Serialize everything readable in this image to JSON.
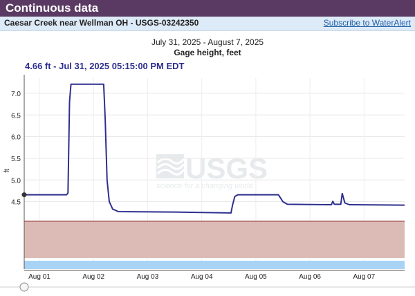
{
  "header": {
    "title": "Continuous data"
  },
  "site": {
    "name": "Caesar Creek near Wellman OH - USGS-03242350",
    "subscribe_label": "Subscribe to WaterAlert"
  },
  "colors": {
    "header_bg": "#5a3a63",
    "site_bg": "#ddeaf7",
    "line": "#2e2f8f",
    "flood_band": "#dcbab5",
    "flood_line": "#8b2a2a",
    "blue_band": "#a9d3f5"
  },
  "watermark": {
    "logo_text": "USGS",
    "tagline": "science for a changing world"
  },
  "chart_data": {
    "type": "line",
    "title": "July 31, 2025 - August 7, 2025",
    "subtitle": "Gage height, feet",
    "tooltip": "4.66 ft - Jul 31, 2025 05:15:00 PM EDT",
    "ylabel": "ft",
    "ylim": [
      3.6,
      7.35
    ],
    "y_ticks": [
      {
        "value": 4.5,
        "label": "4.5"
      },
      {
        "value": 5.0,
        "label": "5.0"
      },
      {
        "value": 5.5,
        "label": "5.5"
      },
      {
        "value": 6.0,
        "label": "6.0"
      },
      {
        "value": 6.5,
        "label": "6.5"
      },
      {
        "value": 7.0,
        "label": "7.0"
      }
    ],
    "x_start": "2025-07-31 17:15",
    "x_end": "2025-08-07 18:00",
    "x_ticks": [
      {
        "time": "2025-08-01 00:00",
        "label": "Aug 01"
      },
      {
        "time": "2025-08-02 00:00",
        "label": "Aug 02"
      },
      {
        "time": "2025-08-03 00:00",
        "label": "Aug 03"
      },
      {
        "time": "2025-08-04 00:00",
        "label": "Aug 04"
      },
      {
        "time": "2025-08-05 00:00",
        "label": "Aug 05"
      },
      {
        "time": "2025-08-06 00:00",
        "label": "Aug 06"
      },
      {
        "time": "2025-08-07 00:00",
        "label": "Aug 07"
      }
    ],
    "flood_band_top": 4.05,
    "series": [
      {
        "points": [
          [
            "2025-07-31 17:15",
            4.66
          ],
          [
            "2025-08-01 12:00",
            4.66
          ],
          [
            "2025-08-01 12:40",
            4.7
          ],
          [
            "2025-08-01 13:20",
            6.8
          ],
          [
            "2025-08-01 14:00",
            7.21
          ],
          [
            "2025-08-02 04:30",
            7.21
          ],
          [
            "2025-08-02 05:10",
            6.4
          ],
          [
            "2025-08-02 06:00",
            5.0
          ],
          [
            "2025-08-02 07:00",
            4.5
          ],
          [
            "2025-08-02 08:30",
            4.33
          ],
          [
            "2025-08-02 11:00",
            4.27
          ],
          [
            "2025-08-03 12:00",
            4.26
          ],
          [
            "2025-08-04 00:00",
            4.25
          ],
          [
            "2025-08-04 13:00",
            4.24
          ],
          [
            "2025-08-04 13:40",
            4.42
          ],
          [
            "2025-08-04 14:40",
            4.62
          ],
          [
            "2025-08-04 16:00",
            4.66
          ],
          [
            "2025-08-05 10:00",
            4.66
          ],
          [
            "2025-08-05 12:00",
            4.5
          ],
          [
            "2025-08-05 14:00",
            4.44
          ],
          [
            "2025-08-06 08:00",
            4.43
          ],
          [
            "2025-08-06 09:30",
            4.43
          ],
          [
            "2025-08-06 10:10",
            4.51
          ],
          [
            "2025-08-06 10:50",
            4.44
          ],
          [
            "2025-08-06 13:40",
            4.44
          ],
          [
            "2025-08-06 14:20",
            4.69
          ],
          [
            "2025-08-06 15:30",
            4.47
          ],
          [
            "2025-08-06 17:30",
            4.43
          ],
          [
            "2025-08-07 18:00",
            4.42
          ]
        ]
      }
    ]
  }
}
